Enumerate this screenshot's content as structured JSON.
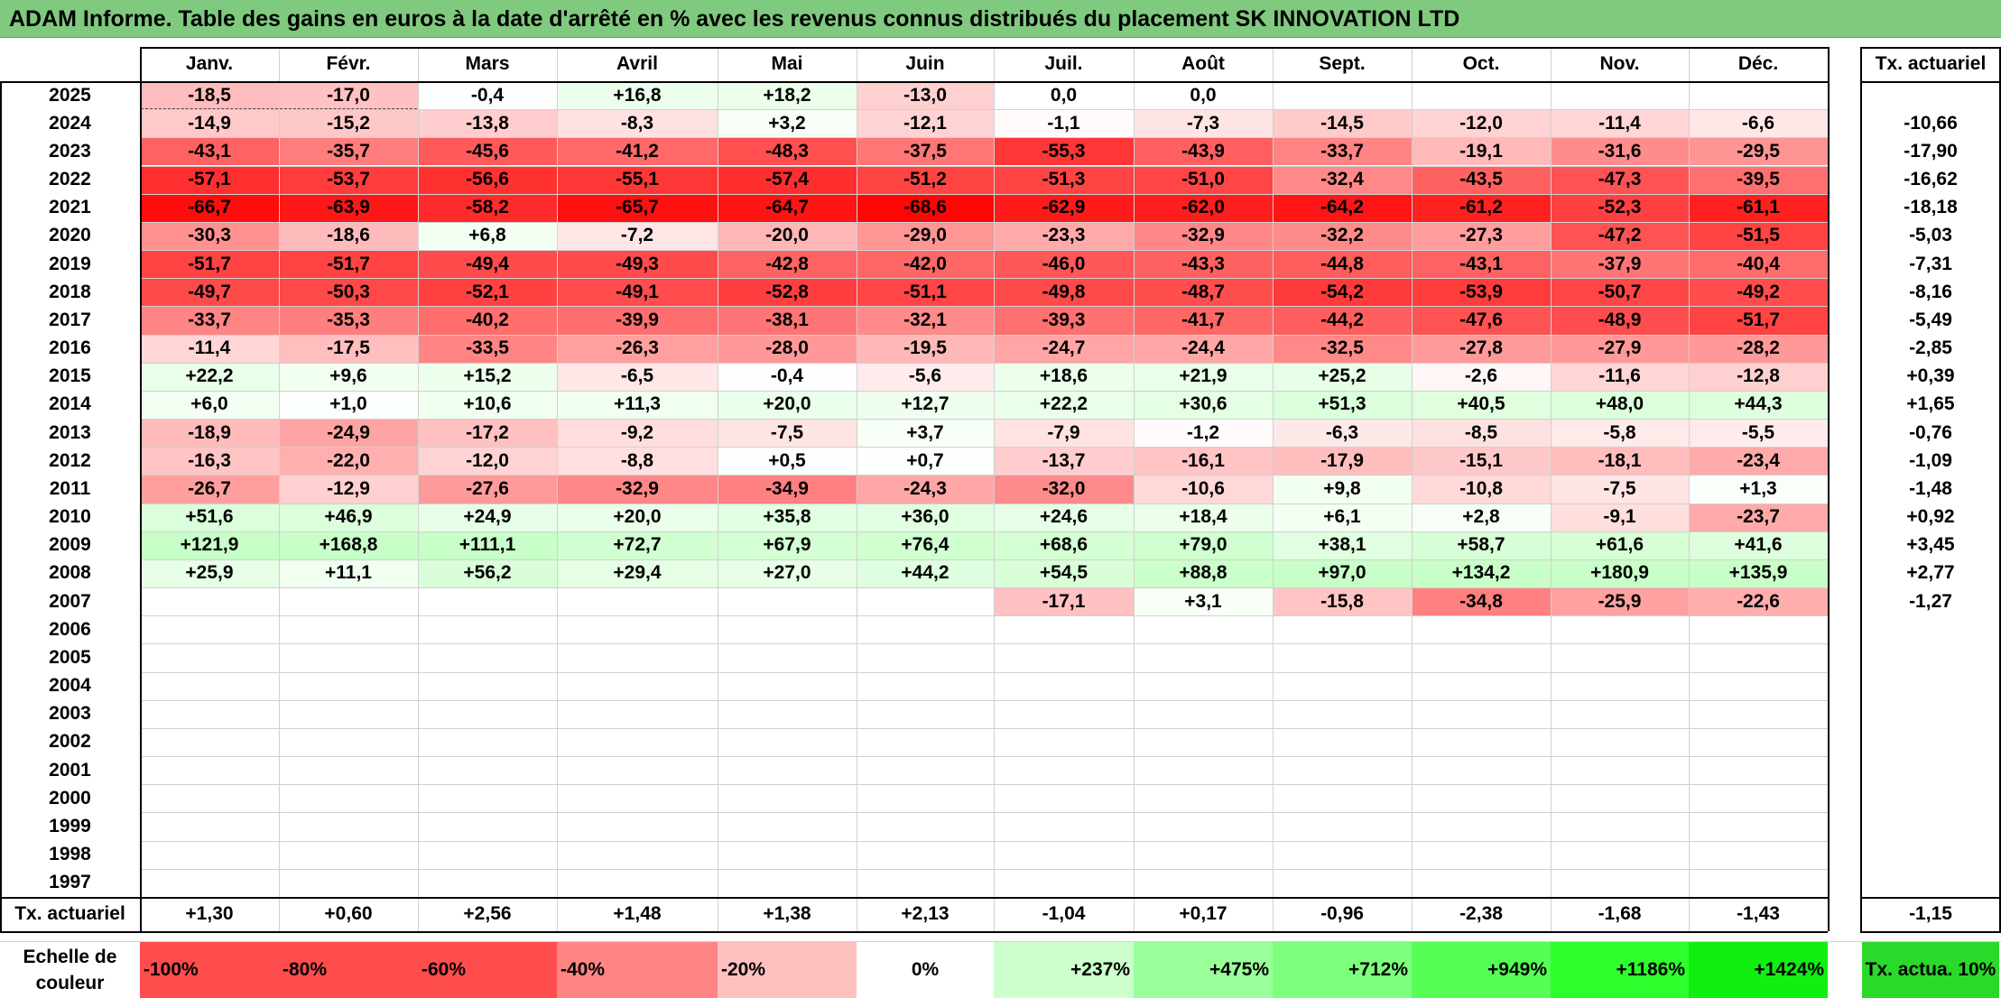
{
  "title": "ADAM Informe. Table des gains en euros à la date d'arrêté en % avec les revenus connus distribués du placement SK INNOVATION LTD",
  "months": [
    "Janv.",
    "Févr.",
    "Mars",
    "Avril",
    "Mai",
    "Juin",
    "Juil.",
    "Août",
    "Sept.",
    "Oct.",
    "Nov.",
    "Déc."
  ],
  "tx_header": "Tx. actuariel",
  "rows": [
    {
      "year": "2025",
      "values": [
        "-18,5",
        "-17,0",
        "-0,4",
        "+16,8",
        "+18,2",
        "-13,0",
        "0,0",
        "0,0",
        "",
        "",
        "",
        ""
      ],
      "tx": ""
    },
    {
      "year": "2024",
      "values": [
        "-14,9",
        "-15,2",
        "-13,8",
        "-8,3",
        "+3,2",
        "-12,1",
        "-1,1",
        "-7,3",
        "-14,5",
        "-12,0",
        "-11,4",
        "-6,6"
      ],
      "tx": "-10,66"
    },
    {
      "year": "2023",
      "values": [
        "-43,1",
        "-35,7",
        "-45,6",
        "-41,2",
        "-48,3",
        "-37,5",
        "-55,3",
        "-43,9",
        "-33,7",
        "-19,1",
        "-31,6",
        "-29,5"
      ],
      "tx": "-17,90"
    },
    {
      "year": "2022",
      "values": [
        "-57,1",
        "-53,7",
        "-56,6",
        "-55,1",
        "-57,4",
        "-51,2",
        "-51,3",
        "-51,0",
        "-32,4",
        "-43,5",
        "-47,3",
        "-39,5"
      ],
      "tx": "-16,62"
    },
    {
      "year": "2021",
      "values": [
        "-66,7",
        "-63,9",
        "-58,2",
        "-65,7",
        "-64,7",
        "-68,6",
        "-62,9",
        "-62,0",
        "-64,2",
        "-61,2",
        "-52,3",
        "-61,1"
      ],
      "tx": "-18,18"
    },
    {
      "year": "2020",
      "values": [
        "-30,3",
        "-18,6",
        "+6,8",
        "-7,2",
        "-20,0",
        "-29,0",
        "-23,3",
        "-32,9",
        "-32,2",
        "-27,3",
        "-47,2",
        "-51,5"
      ],
      "tx": "-5,03"
    },
    {
      "year": "2019",
      "values": [
        "-51,7",
        "-51,7",
        "-49,4",
        "-49,3",
        "-42,8",
        "-42,0",
        "-46,0",
        "-43,3",
        "-44,8",
        "-43,1",
        "-37,9",
        "-40,4"
      ],
      "tx": "-7,31"
    },
    {
      "year": "2018",
      "values": [
        "-49,7",
        "-50,3",
        "-52,1",
        "-49,1",
        "-52,8",
        "-51,1",
        "-49,8",
        "-48,7",
        "-54,2",
        "-53,9",
        "-50,7",
        "-49,2"
      ],
      "tx": "-8,16"
    },
    {
      "year": "2017",
      "values": [
        "-33,7",
        "-35,3",
        "-40,2",
        "-39,9",
        "-38,1",
        "-32,1",
        "-39,3",
        "-41,7",
        "-44,2",
        "-47,6",
        "-48,9",
        "-51,7"
      ],
      "tx": "-5,49"
    },
    {
      "year": "2016",
      "values": [
        "-11,4",
        "-17,5",
        "-33,5",
        "-26,3",
        "-28,0",
        "-19,5",
        "-24,7",
        "-24,4",
        "-32,5",
        "-27,8",
        "-27,9",
        "-28,2"
      ],
      "tx": "-2,85"
    },
    {
      "year": "2015",
      "values": [
        "+22,2",
        "+9,6",
        "+15,2",
        "-6,5",
        "-0,4",
        "-5,6",
        "+18,6",
        "+21,9",
        "+25,2",
        "-2,6",
        "-11,6",
        "-12,8"
      ],
      "tx": "+0,39"
    },
    {
      "year": "2014",
      "values": [
        "+6,0",
        "+1,0",
        "+10,6",
        "+11,3",
        "+20,0",
        "+12,7",
        "+22,2",
        "+30,6",
        "+51,3",
        "+40,5",
        "+48,0",
        "+44,3"
      ],
      "tx": "+1,65"
    },
    {
      "year": "2013",
      "values": [
        "-18,9",
        "-24,9",
        "-17,2",
        "-9,2",
        "-7,5",
        "+3,7",
        "-7,9",
        "-1,2",
        "-6,3",
        "-8,5",
        "-5,8",
        "-5,5"
      ],
      "tx": "-0,76"
    },
    {
      "year": "2012",
      "values": [
        "-16,3",
        "-22,0",
        "-12,0",
        "-8,8",
        "+0,5",
        "+0,7",
        "-13,7",
        "-16,1",
        "-17,9",
        "-15,1",
        "-18,1",
        "-23,4"
      ],
      "tx": "-1,09"
    },
    {
      "year": "2011",
      "values": [
        "-26,7",
        "-12,9",
        "-27,6",
        "-32,9",
        "-34,9",
        "-24,3",
        "-32,0",
        "-10,6",
        "+9,8",
        "-10,8",
        "-7,5",
        "+1,3"
      ],
      "tx": "-1,48"
    },
    {
      "year": "2010",
      "values": [
        "+51,6",
        "+46,9",
        "+24,9",
        "+20,0",
        "+35,8",
        "+36,0",
        "+24,6",
        "+18,4",
        "+6,1",
        "+2,8",
        "-9,1",
        "-23,7"
      ],
      "tx": "+0,92"
    },
    {
      "year": "2009",
      "values": [
        "+121,9",
        "+168,8",
        "+111,1",
        "+72,7",
        "+67,9",
        "+76,4",
        "+68,6",
        "+79,0",
        "+38,1",
        "+58,7",
        "+61,6",
        "+41,6"
      ],
      "tx": "+3,45"
    },
    {
      "year": "2008",
      "values": [
        "+25,9",
        "+11,1",
        "+56,2",
        "+29,4",
        "+27,0",
        "+44,2",
        "+54,5",
        "+88,8",
        "+97,0",
        "+134,2",
        "+180,9",
        "+135,9"
      ],
      "tx": "+2,77"
    },
    {
      "year": "2007",
      "values": [
        "",
        "",
        "",
        "",
        "",
        "",
        "-17,1",
        "+3,1",
        "-15,8",
        "-34,8",
        "-25,9",
        "-22,6"
      ],
      "tx": "-1,27"
    },
    {
      "year": "2006",
      "values": [
        "",
        "",
        "",
        "",
        "",
        "",
        "",
        "",
        "",
        "",
        "",
        ""
      ],
      "tx": ""
    },
    {
      "year": "2005",
      "values": [
        "",
        "",
        "",
        "",
        "",
        "",
        "",
        "",
        "",
        "",
        "",
        ""
      ],
      "tx": ""
    },
    {
      "year": "2004",
      "values": [
        "",
        "",
        "",
        "",
        "",
        "",
        "",
        "",
        "",
        "",
        "",
        ""
      ],
      "tx": ""
    },
    {
      "year": "2003",
      "values": [
        "",
        "",
        "",
        "",
        "",
        "",
        "",
        "",
        "",
        "",
        "",
        ""
      ],
      "tx": ""
    },
    {
      "year": "2002",
      "values": [
        "",
        "",
        "",
        "",
        "",
        "",
        "",
        "",
        "",
        "",
        "",
        ""
      ],
      "tx": ""
    },
    {
      "year": "2001",
      "values": [
        "",
        "",
        "",
        "",
        "",
        "",
        "",
        "",
        "",
        "",
        "",
        ""
      ],
      "tx": ""
    },
    {
      "year": "2000",
      "values": [
        "",
        "",
        "",
        "",
        "",
        "",
        "",
        "",
        "",
        "",
        "",
        ""
      ],
      "tx": ""
    },
    {
      "year": "1999",
      "values": [
        "",
        "",
        "",
        "",
        "",
        "",
        "",
        "",
        "",
        "",
        "",
        ""
      ],
      "tx": ""
    },
    {
      "year": "1998",
      "values": [
        "",
        "",
        "",
        "",
        "",
        "",
        "",
        "",
        "",
        "",
        "",
        ""
      ],
      "tx": ""
    },
    {
      "year": "1997",
      "values": [
        "",
        "",
        "",
        "",
        "",
        "",
        "",
        "",
        "",
        "",
        "",
        ""
      ],
      "tx": ""
    }
  ],
  "tx_row": {
    "label": "Tx. actuariel",
    "values": [
      "+1,30",
      "+0,60",
      "+2,56",
      "+1,48",
      "+1,38",
      "+2,13",
      "-1,04",
      "+0,17",
      "-0,96",
      "-2,38",
      "-1,68",
      "-1,43"
    ],
    "total": "-1,15"
  },
  "scale": {
    "label": "Echelle de couleur",
    "items": [
      {
        "text": "-100%",
        "color": "#ff4d4d",
        "align": "left"
      },
      {
        "text": "-80%",
        "color": "#ff4d4d",
        "align": "left"
      },
      {
        "text": "-60%",
        "color": "#ff4d4d",
        "align": "left"
      },
      {
        "text": "-40%",
        "color": "#ff8585",
        "align": "left"
      },
      {
        "text": "-20%",
        "color": "#ffc0c0",
        "align": "left"
      },
      {
        "text": "0%",
        "color": "#ffffff",
        "align": "center"
      },
      {
        "text": "+237%",
        "color": "#ccffcc",
        "align": "right"
      },
      {
        "text": "+475%",
        "color": "#99ff99",
        "align": "right"
      },
      {
        "text": "+712%",
        "color": "#7dff7d",
        "align": "right"
      },
      {
        "text": "+949%",
        "color": "#55ff55",
        "align": "right"
      },
      {
        "text": "+1186%",
        "color": "#2dff2d",
        "align": "right"
      },
      {
        "text": "+1424%",
        "color": "#11ee11",
        "align": "right"
      }
    ],
    "tx_label": "Tx. actua. 10%",
    "tx_color": "#2bd92b"
  }
}
